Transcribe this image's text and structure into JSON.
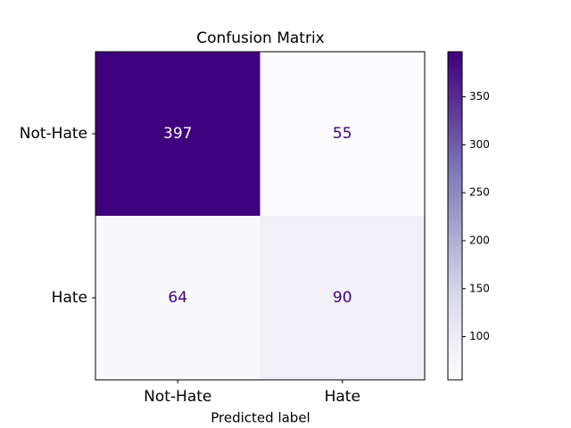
{
  "chart_data": {
    "type": "heatmap",
    "title": "Confusion Matrix",
    "x_label": "Predicted label",
    "x_categories": [
      "Not-Hate",
      "Hate"
    ],
    "y_categories": [
      "Not-Hate",
      "Hate"
    ],
    "values": [
      [
        397,
        55
      ],
      [
        64,
        90
      ]
    ],
    "colormap": "Purples",
    "colorbar_lim": [
      55,
      397
    ],
    "colorbar_ticks": [
      100,
      150,
      200,
      250,
      300,
      350
    ]
  }
}
